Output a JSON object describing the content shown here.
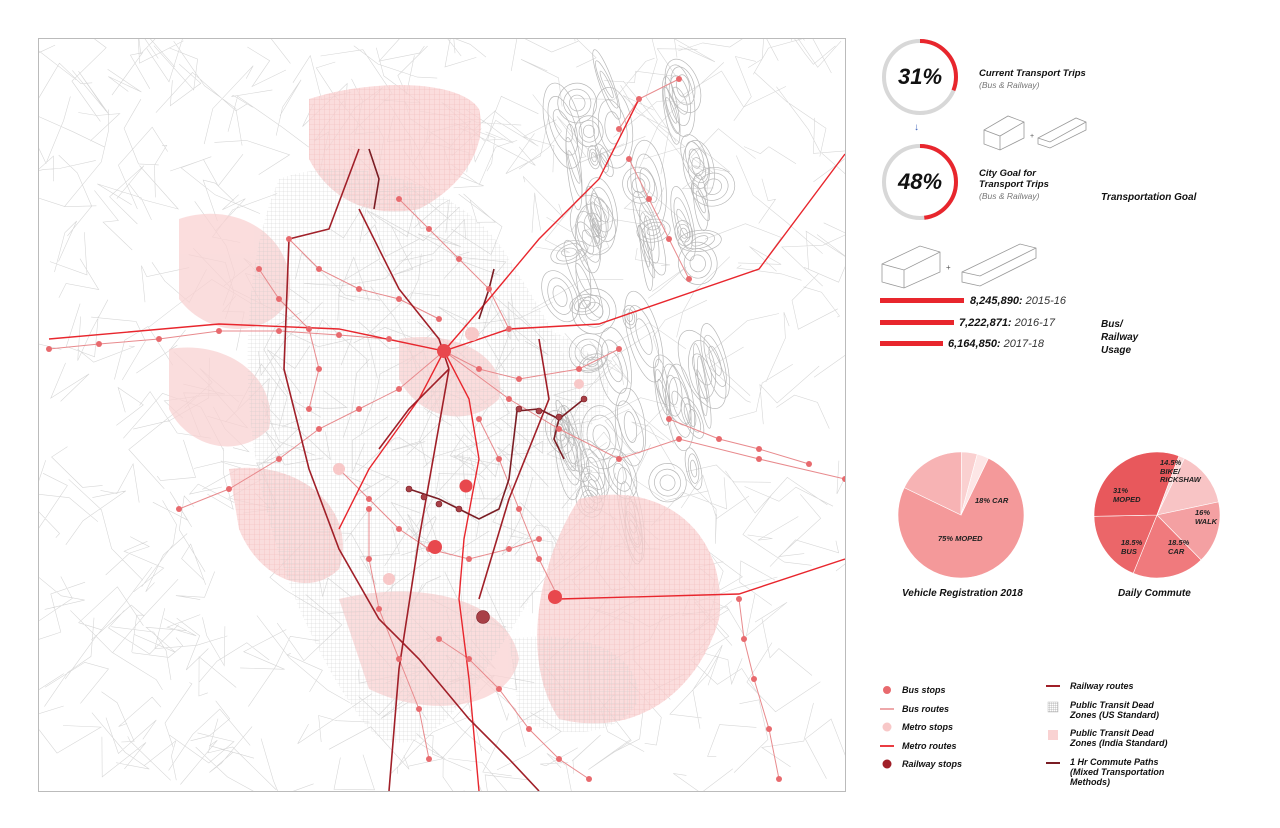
{
  "goal": {
    "current": {
      "percent": "31%",
      "value": 0.31,
      "title": "Current Transport Trips",
      "subtitle": "(Bus & Railway)"
    },
    "target": {
      "percent": "48%",
      "value": 0.48,
      "title": "City Goal for Transport Trips",
      "subtitle": "(Bus & Railway)"
    },
    "section_label": "Transportation Goal"
  },
  "usage": {
    "label": "Bus/ Railway Usage",
    "rows": [
      {
        "value": "8,245,890:",
        "year": "2015-16",
        "count": 8245890
      },
      {
        "value": "7,222,871:",
        "year": "2016-17",
        "count": 7222871
      },
      {
        "value": "6,164,850:",
        "year": "2017-18",
        "count": 6164850
      }
    ]
  },
  "charts": {
    "vehicle": {
      "title": "Vehicle Registration 2018",
      "labels": [
        "18% CAR",
        "75% MOPED"
      ]
    },
    "commute": {
      "title": "Daily Commute",
      "labels": [
        "14.5% BIKE/ RICKSHAW",
        "16% WALK",
        "18.5% CAR",
        "18.5% BUS",
        "31% MOPED"
      ]
    }
  },
  "chart_data": [
    {
      "type": "pie",
      "title": "Vehicle Registration 2018",
      "slices": [
        {
          "label": "75% MOPED",
          "value": 75,
          "color": "#f4999a"
        },
        {
          "label": "18% CAR",
          "value": 18,
          "color": "#f7b3b4"
        },
        {
          "label": "",
          "value": 4,
          "color": "#fad0d0"
        },
        {
          "label": "",
          "value": 3,
          "color": "#fde6e6"
        }
      ]
    },
    {
      "type": "pie",
      "title": "Daily Commute",
      "slices": [
        {
          "label": "14.5% BIKE/ RICKSHAW",
          "value": 14.5,
          "color": "#f8c4c5"
        },
        {
          "label": "16% WALK",
          "value": 16,
          "color": "#f4a0a2"
        },
        {
          "label": "18.5% CAR",
          "value": 18.5,
          "color": "#f07a7d"
        },
        {
          "label": "18.5% BUS",
          "value": 18.5,
          "color": "#eb6669"
        },
        {
          "label": "31% MOPED",
          "value": 31,
          "color": "#e8585c"
        },
        {
          "label": "",
          "value": 1.5,
          "color": "#fbdada"
        }
      ]
    }
  ],
  "legend": {
    "left": [
      {
        "label": "Bus stops",
        "symbol": "bus-stop"
      },
      {
        "label": "Bus routes",
        "symbol": "bus-route"
      },
      {
        "label": "Metro stops",
        "symbol": "metro-stop"
      },
      {
        "label": "Metro routes",
        "symbol": "metro-route"
      },
      {
        "label": "Railway stops",
        "symbol": "railway-stop"
      }
    ],
    "right": [
      {
        "label": "Railway routes",
        "symbol": "railway-route"
      },
      {
        "label": "Public Transit Dead Zones (US Standard)",
        "symbol": "dead-zone-us"
      },
      {
        "label": "Public Transit Dead Zones (India Standard)",
        "symbol": "dead-zone-india"
      },
      {
        "label": "1 Hr Commute Paths (Mixed Transportation Methods)",
        "symbol": "commute-path"
      }
    ]
  },
  "colors": {
    "accent": "#e8262d",
    "bus_stop": "#e86a6e",
    "metro_stop": "#f8c8c8",
    "railway": "#a01f28",
    "commute": "#7a1d24",
    "dead_zone": "#f9d2d2"
  },
  "icons": [
    "bus-icon",
    "train-icon"
  ]
}
